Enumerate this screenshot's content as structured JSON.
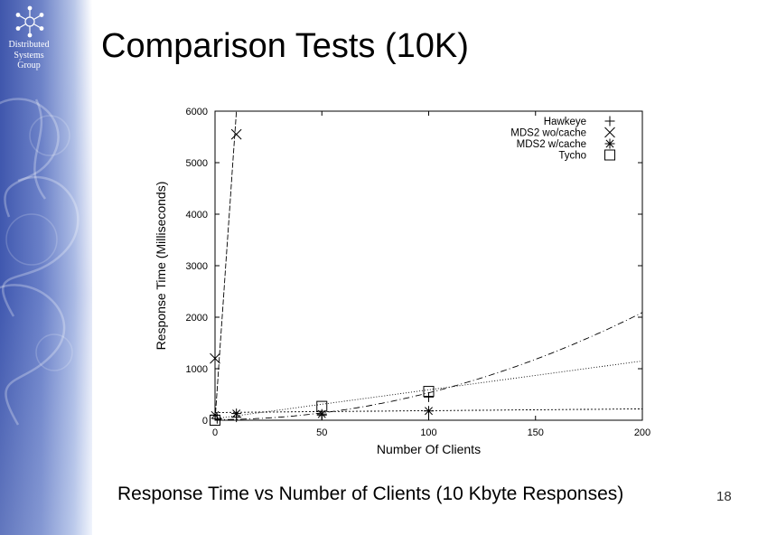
{
  "sidebar": {
    "logo_lines": [
      "Distributed",
      "Systems",
      "Group"
    ]
  },
  "slide": {
    "title": "Comparison Tests (10K)",
    "caption": "Response Time vs Number of Clients (10 Kbyte Responses)",
    "page_number": "18"
  },
  "colors": {
    "sidebar_dark": "#3f56ab",
    "sidebar_light": "#b8c6e8",
    "plot_ink": "#000000"
  },
  "chart_data": {
    "type": "scatter",
    "title": "",
    "xlabel": "Number Of Clients",
    "ylabel": "Response Time (Milliseconds)",
    "xlim": [
      0,
      200
    ],
    "ylim": [
      0,
      6000
    ],
    "xticks": [
      0,
      50,
      100,
      150,
      200
    ],
    "yticks": [
      0,
      1000,
      2000,
      3000,
      4000,
      5000,
      6000
    ],
    "legend_position": "top-right",
    "grid": false,
    "series": [
      {
        "name": "Hawkeye",
        "marker": "plus",
        "x": [
          1,
          10,
          50,
          100
        ],
        "y": [
          30,
          60,
          100,
          450
        ],
        "fit": {
          "kind": "power",
          "a": 12,
          "c": 0.052,
          "p": 2.0
        }
      },
      {
        "name": "MDS2 wo/cache",
        "marker": "cross",
        "x": [
          0,
          10
        ],
        "y": [
          1200,
          5550
        ],
        "fit": {
          "kind": "linear",
          "x0": 0,
          "y0": 0,
          "slope": 600
        }
      },
      {
        "name": "MDS2 w/cache",
        "marker": "asterisk",
        "x": [
          0,
          10,
          50,
          100
        ],
        "y": [
          100,
          130,
          120,
          180
        ],
        "fit": {
          "kind": "linear",
          "x0": 0,
          "y0": 150,
          "slope": 0.35
        }
      },
      {
        "name": "Tycho",
        "marker": "square",
        "x": [
          0,
          50,
          100
        ],
        "y": [
          0,
          270,
          560
        ],
        "fit": {
          "kind": "linear",
          "x0": 0,
          "y0": 30,
          "slope": 5.6
        }
      }
    ]
  }
}
